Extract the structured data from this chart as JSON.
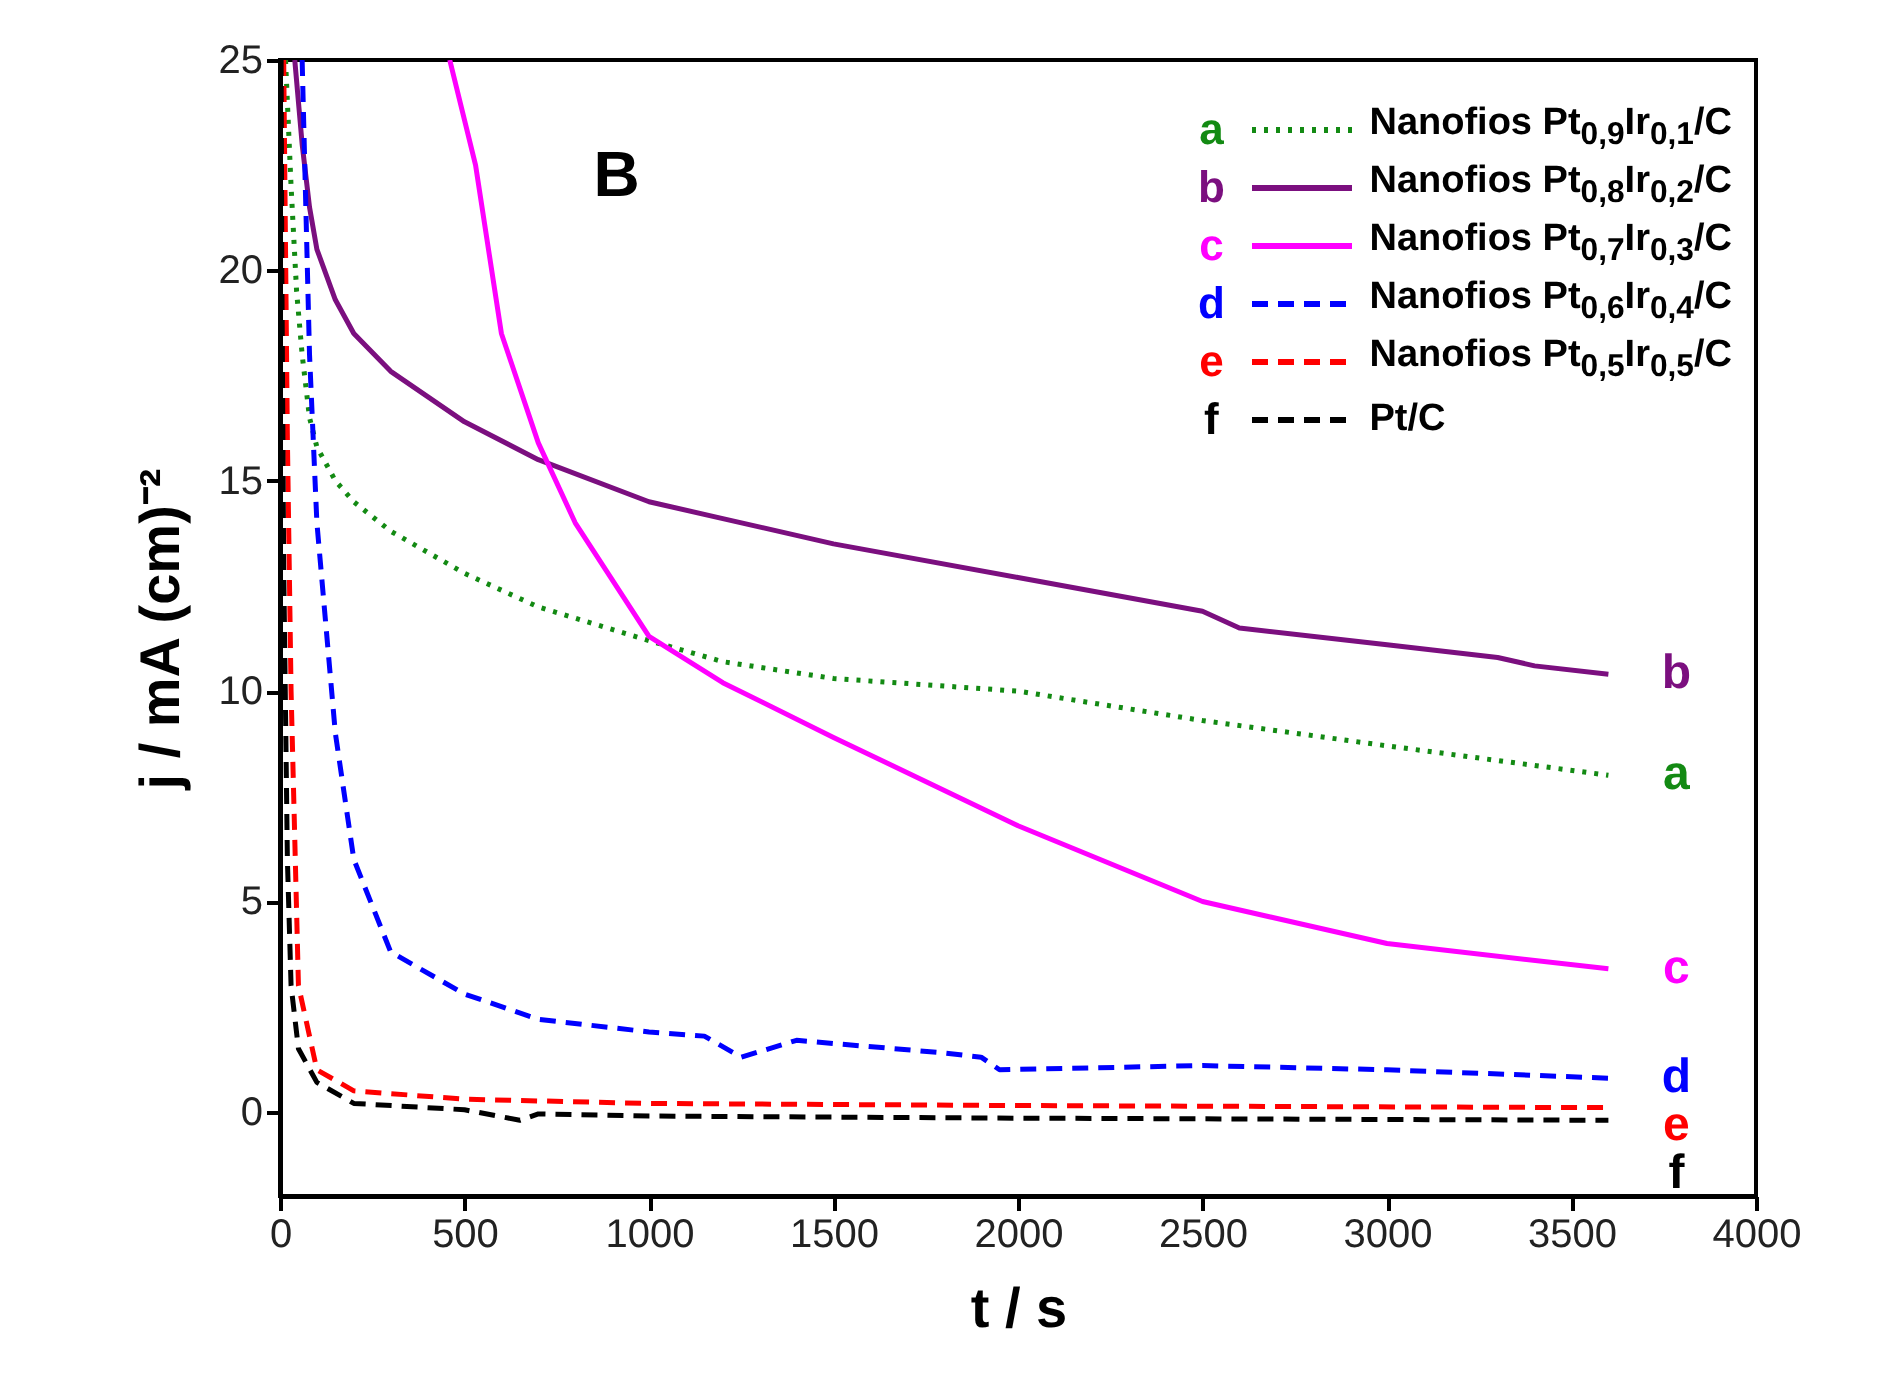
{
  "chart_data": {
    "type": "line",
    "title": "B",
    "xlabel": "t / s",
    "ylabel": "j / mA (cm)⁻²",
    "xlim": [
      0,
      4000
    ],
    "xticks": [
      0,
      500,
      1000,
      1500,
      2000,
      2500,
      3000,
      3500,
      4000
    ],
    "ylim": [
      -2,
      25
    ],
    "yticks": [
      0,
      5,
      10,
      15,
      20,
      25
    ],
    "grid": false,
    "legend": "top right",
    "series": [
      {
        "name": "Nanofios Pt$_{0,9}$Ir$_{0,1}$/C",
        "color": "#138a13",
        "line_style": "dotted",
        "x": [
          15,
          30,
          45,
          60,
          80,
          100,
          150,
          200,
          300,
          500,
          700,
          1000,
          1200,
          1500,
          2000,
          2500,
          3000,
          3600
        ],
        "values": [
          25,
          22,
          19.5,
          18,
          16.5,
          15.8,
          15,
          14.5,
          13.8,
          12.8,
          12,
          11.2,
          10.7,
          10.3,
          10,
          9.3,
          8.7,
          8.0
        ]
      },
      {
        "name": "Nanofios Pt$_{0,8}$Ir$_{0,2}$/C",
        "color": "#7b0f7f",
        "line_style": "solid",
        "x": [
          40,
          60,
          80,
          100,
          150,
          200,
          300,
          400,
          500,
          700,
          1000,
          1200,
          1500,
          2000,
          2500,
          2600,
          3000,
          3300,
          3400,
          3600
        ],
        "values": [
          25,
          23,
          21.5,
          20.5,
          19.3,
          18.5,
          17.6,
          17,
          16.4,
          15.5,
          14.5,
          14.1,
          13.5,
          12.7,
          11.9,
          11.5,
          11.1,
          10.8,
          10.6,
          10.4
        ]
      },
      {
        "name": "Nanofios Pt$_{0,7}$Ir$_{0,3}$/C",
        "color": "#ff00ff",
        "line_style": "solid",
        "x": [
          460,
          530,
          600,
          700,
          800,
          1000,
          1200,
          1500,
          2000,
          2500,
          3000,
          3600
        ],
        "values": [
          25,
          22.5,
          18.5,
          15.9,
          14,
          11.3,
          10.2,
          8.9,
          6.8,
          5.0,
          4.0,
          3.4
        ]
      },
      {
        "name": "Nanofios Pt$_{0,6}$Ir$_{0,4}$/C",
        "color": "#0000ff",
        "line_style": "dashed",
        "x": [
          60,
          80,
          100,
          150,
          200,
          300,
          500,
          700,
          1000,
          1150,
          1250,
          1400,
          1800,
          1900,
          1950,
          2500,
          3000,
          3600
        ],
        "values": [
          25,
          18,
          14,
          9,
          6,
          3.8,
          2.8,
          2.2,
          1.9,
          1.8,
          1.3,
          1.7,
          1.4,
          1.3,
          1.0,
          1.1,
          1.0,
          0.8
        ]
      },
      {
        "name": "Nanofios Pt$_{0,5}$Ir$_{0,5}$/C",
        "color": "#ff0000",
        "line_style": "dashed",
        "x": [
          10,
          20,
          30,
          50,
          100,
          200,
          500,
          1000,
          2000,
          3600
        ],
        "values": [
          25,
          16,
          10,
          3,
          1,
          0.5,
          0.3,
          0.2,
          0.15,
          0.1
        ]
      },
      {
        "name": "Pt/C",
        "color": "#000000",
        "line_style": "dashed",
        "x": [
          3,
          5,
          10,
          20,
          30,
          50,
          100,
          200,
          500,
          650,
          700,
          1000,
          2000,
          3600
        ],
        "values": [
          25,
          20,
          13,
          6,
          3,
          1.5,
          0.7,
          0.2,
          0.05,
          -0.2,
          -0.05,
          -0.1,
          -0.15,
          -0.2
        ]
      }
    ],
    "annotations": [
      "a",
      "b",
      "c",
      "d",
      "e",
      "f"
    ]
  }
}
